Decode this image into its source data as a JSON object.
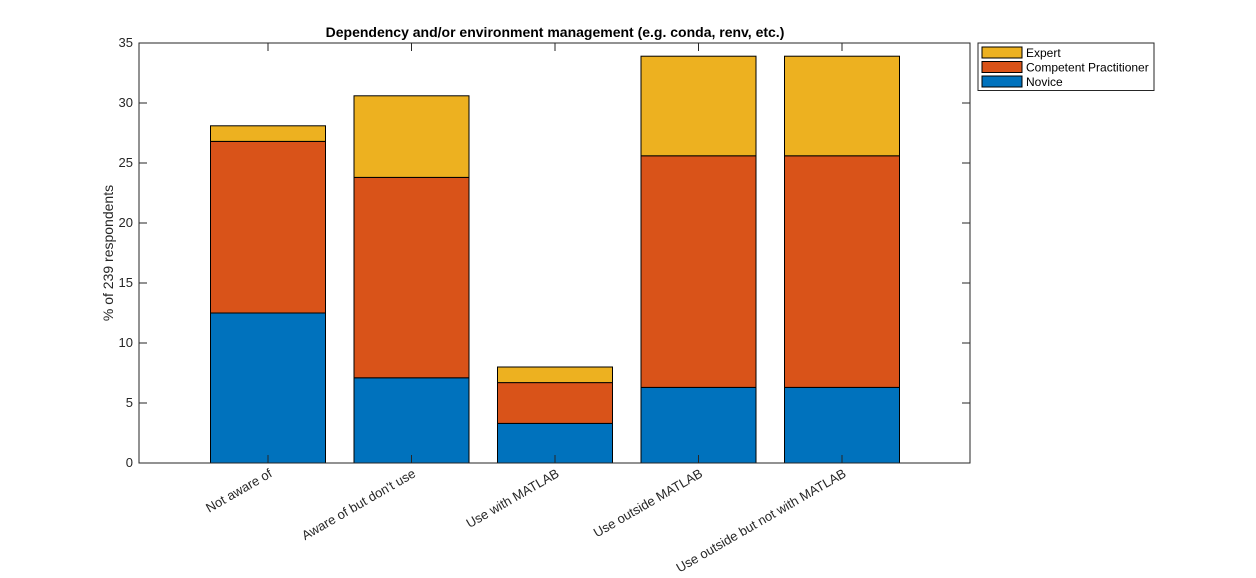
{
  "chart_data": {
    "type": "bar",
    "stacked": true,
    "title": "Dependency and/or environment management (e.g. conda, renv, etc.)",
    "ylabel": "% of 239 respondents",
    "xlabel": "",
    "ylim": [
      0,
      35
    ],
    "yticks": [
      0,
      5,
      10,
      15,
      20,
      25,
      30,
      35
    ],
    "categories": [
      "Not aware of",
      "Aware of but don't use",
      "Use with MATLAB",
      "Use outside MATLAB",
      "Use outside but not with MATLAB"
    ],
    "series": [
      {
        "name": "Novice",
        "color": "#0072BD",
        "values": [
          12.5,
          7.1,
          3.3,
          6.3,
          6.3
        ]
      },
      {
        "name": "Competent Practitioner",
        "color": "#D95319",
        "values": [
          14.3,
          16.7,
          3.4,
          19.3,
          19.3
        ]
      },
      {
        "name": "Expert",
        "color": "#EDB120",
        "values": [
          1.3,
          6.8,
          1.3,
          8.3,
          8.3
        ]
      }
    ],
    "legend": {
      "position": "outside-top-right",
      "order": [
        "Expert",
        "Competent Practitioner",
        "Novice"
      ]
    },
    "grid": false
  }
}
